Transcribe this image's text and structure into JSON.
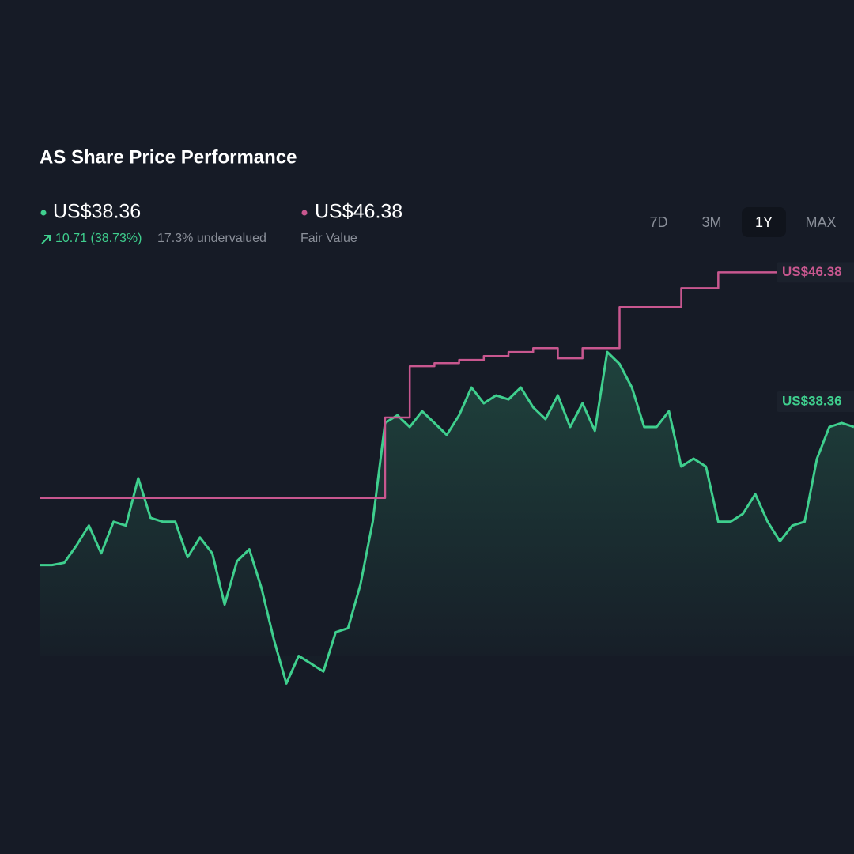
{
  "chart_data": {
    "type": "line",
    "title": "AS Share Price Performance",
    "price_label": "US$38.36",
    "change_label": "10.71 (38.73%)",
    "undervalued_label": "17.3% undervalued",
    "fair_value_label": "US$46.38",
    "ranges": [
      "7D",
      "3M",
      "1Y",
      "MAX"
    ],
    "selected_range": 2,
    "ylim": [
      23.6,
      48.2
    ],
    "series": [
      {
        "color": "#3fcf8e",
        "area": true,
        "end_label": "US$38.36",
        "values": [
          31.2,
          31.2,
          31.32,
          32.22,
          33.25,
          31.81,
          33.45,
          33.25,
          35.7,
          33.65,
          33.45,
          33.45,
          31.61,
          32.63,
          31.81,
          29.15,
          31.4,
          32.02,
          29.97,
          27.31,
          25.06,
          26.49,
          26.09,
          25.68,
          27.72,
          27.93,
          30.18,
          33.45,
          38.57,
          38.97,
          38.36,
          39.18,
          38.57,
          37.95,
          38.97,
          40.41,
          39.59,
          40.0,
          39.79,
          40.41,
          39.38,
          38.77,
          40.0,
          38.36,
          39.59,
          38.16,
          42.25,
          41.63,
          40.41,
          38.36,
          38.36,
          39.18,
          36.31,
          36.72,
          36.31,
          33.45,
          33.45,
          33.86,
          34.88,
          33.45,
          32.43,
          33.25,
          33.45,
          36.72,
          38.36,
          38.57,
          38.36
        ]
      },
      {
        "name": "Fair Value",
        "color": "#c8578f",
        "step": true,
        "end_label": "US$46.38",
        "values": [
          34.68,
          34.68,
          34.68,
          34.68,
          34.68,
          34.68,
          34.68,
          34.68,
          34.68,
          34.68,
          34.68,
          34.68,
          34.68,
          34.68,
          34.68,
          34.68,
          34.68,
          34.68,
          34.68,
          34.68,
          34.68,
          34.68,
          34.68,
          34.68,
          34.68,
          34.68,
          34.68,
          34.68,
          38.85,
          38.85,
          41.51,
          41.51,
          41.67,
          41.67,
          41.84,
          41.84,
          42.04,
          42.04,
          42.25,
          42.25,
          42.45,
          42.45,
          41.92,
          41.92,
          42.45,
          42.45,
          42.45,
          44.58,
          44.58,
          44.58,
          44.58,
          44.58,
          45.56,
          45.56,
          45.56,
          46.38,
          46.38,
          46.38,
          46.38,
          46.38,
          46.38,
          46.38,
          46.38,
          46.38,
          46.38,
          46.38,
          46.38
        ]
      }
    ]
  }
}
